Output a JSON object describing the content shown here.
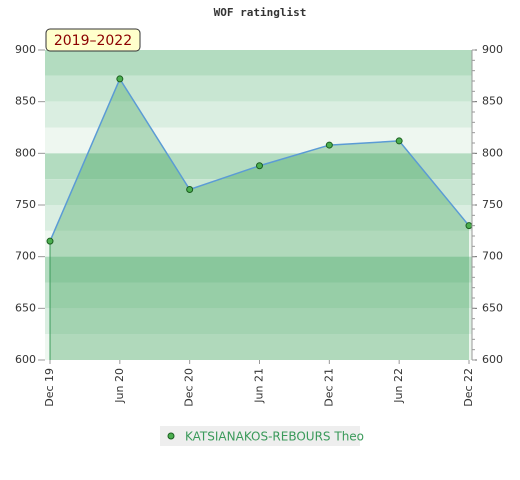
{
  "chart_data": {
    "type": "area",
    "title": "WOF ratinglist",
    "badge": "2019–2022",
    "categories": [
      "Dec 19",
      "Jun 20",
      "Dec 20",
      "Jun 21",
      "Dec 21",
      "Jun 22",
      "Dec 22"
    ],
    "series": [
      {
        "name": "KATSIANAKOS-REBOURS Theo",
        "color": "#5b9bd5",
        "values": [
          715,
          872,
          765,
          788,
          808,
          812,
          730
        ]
      }
    ],
    "ylim": [
      600,
      900
    ],
    "yticks": [
      600,
      650,
      700,
      750,
      800,
      850,
      900
    ],
    "y2lim": [
      600,
      900
    ],
    "y2ticks": [
      600,
      650,
      700,
      750,
      800,
      850,
      900
    ]
  }
}
